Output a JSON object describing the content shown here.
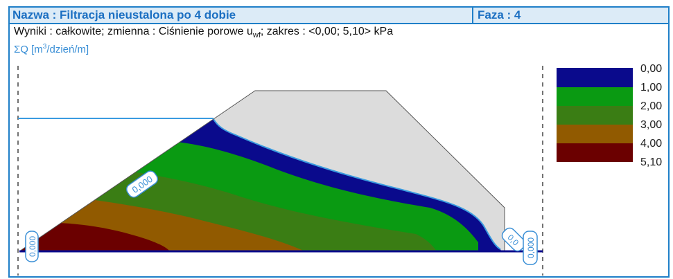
{
  "header": {
    "title": "Nazwa : Filtracja nieustalona po 4 dobie",
    "phase": "Faza : 4"
  },
  "results": {
    "prefix": "Wyniki : całkowite; zmienna : Ciśnienie porowe u",
    "subscript": "wf",
    "suffix": "; zakres : <0,00; 5,10> kPa"
  },
  "flux_label": {
    "prefix": "ΣQ [m",
    "sup": "3",
    "suffix": "/dzień/m]"
  },
  "flow_labels": [
    "0,000",
    "0,000",
    "0,0",
    "0,000"
  ],
  "legend": {
    "values": [
      "0,00",
      "1,00",
      "2,00",
      "3,00",
      "4,00",
      "5,10"
    ],
    "colors": [
      "#0a0a8c",
      "#0a9a12",
      "#3a7d14",
      "#915a00",
      "#6b0000"
    ]
  },
  "colors": {
    "accent": "#1f7fc8",
    "soil_dry": "#dcdcdc",
    "water_line": "#3a9be0"
  }
}
